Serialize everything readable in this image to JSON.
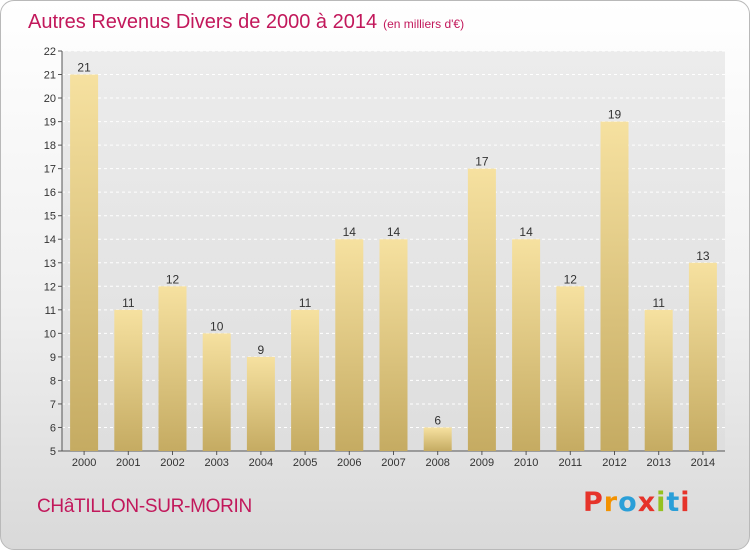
{
  "title": "Autres Revenus Divers de 2000 à 2014",
  "unit": "(en milliers d'€)",
  "commune": "CHâTILLON-SUR-MORIN",
  "logo": {
    "letters": [
      "P",
      "r",
      "o",
      "x",
      "i",
      "t",
      "i"
    ],
    "colors": [
      "#e6332a",
      "#f39200",
      "#2a9fd8",
      "#e6332a",
      "#95c11f",
      "#2a9fd8",
      "#e6332a"
    ]
  },
  "colors": {
    "title": "#c2185b",
    "bar_light": "#f6e1a0",
    "bar_dark": "#c5ab62"
  },
  "chart_data": {
    "type": "bar",
    "categories": [
      "2000",
      "2001",
      "2002",
      "2003",
      "2004",
      "2005",
      "2006",
      "2007",
      "2008",
      "2009",
      "2010",
      "2011",
      "2012",
      "2013",
      "2014"
    ],
    "values": [
      21,
      11,
      12,
      10,
      9,
      11,
      14,
      14,
      6,
      17,
      14,
      12,
      19,
      11,
      13
    ],
    "ylim": [
      5,
      22
    ],
    "yticks": [
      5,
      6,
      7,
      8,
      9,
      10,
      11,
      12,
      13,
      14,
      15,
      16,
      17,
      18,
      19,
      20,
      21,
      22
    ],
    "grid": true,
    "data_labels": true
  }
}
